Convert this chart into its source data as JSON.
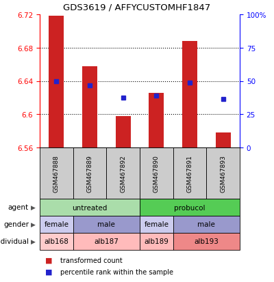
{
  "title": "GDS3619 / AFFYCUSTOMHF1847",
  "samples": [
    "GSM467888",
    "GSM467889",
    "GSM467892",
    "GSM467890",
    "GSM467891",
    "GSM467893"
  ],
  "bar_values": [
    6.718,
    6.658,
    6.598,
    6.626,
    6.688,
    6.578
  ],
  "bar_bottom": 6.56,
  "percentile_values": [
    6.64,
    6.635,
    6.62,
    6.622,
    6.638,
    6.618
  ],
  "ylim": [
    6.56,
    6.72
  ],
  "yticks_left": [
    6.56,
    6.6,
    6.64,
    6.68,
    6.72
  ],
  "yticks_right": [
    0,
    25,
    50,
    75,
    100
  ],
  "yticks_right_labels": [
    "0",
    "25",
    "50",
    "75",
    "100%"
  ],
  "bar_color": "#cc2222",
  "dot_color": "#2222cc",
  "agent_groups": [
    {
      "label": "untreated",
      "cols": [
        0,
        1,
        2
      ],
      "color": "#aaddaa"
    },
    {
      "label": "probucol",
      "cols": [
        3,
        4,
        5
      ],
      "color": "#55cc55"
    }
  ],
  "gender_groups": [
    {
      "label": "female",
      "cols": [
        0
      ],
      "color": "#ccccee"
    },
    {
      "label": "male",
      "cols": [
        1,
        2
      ],
      "color": "#9999cc"
    },
    {
      "label": "female",
      "cols": [
        3
      ],
      "color": "#ccccee"
    },
    {
      "label": "male",
      "cols": [
        4,
        5
      ],
      "color": "#9999cc"
    }
  ],
  "individual_groups": [
    {
      "label": "alb168",
      "cols": [
        0
      ],
      "color": "#ffcccc"
    },
    {
      "label": "alb187",
      "cols": [
        1,
        2
      ],
      "color": "#ffbbbb"
    },
    {
      "label": "alb189",
      "cols": [
        3
      ],
      "color": "#ffbbbb"
    },
    {
      "label": "alb193",
      "cols": [
        4,
        5
      ],
      "color": "#ee8888"
    }
  ],
  "legend_bar_label": "transformed count",
  "legend_dot_label": "percentile rank within the sample"
}
